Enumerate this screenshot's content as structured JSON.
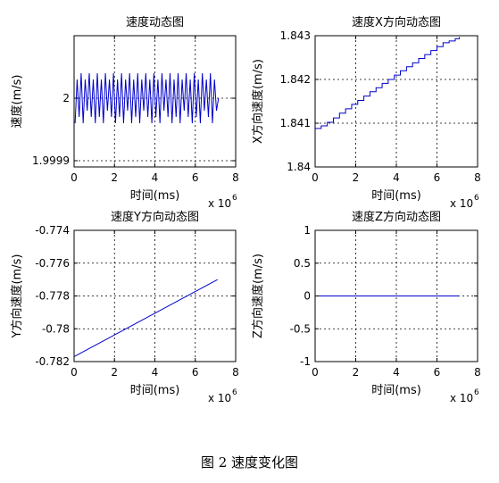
{
  "figure_caption": "图 2  速度变化图",
  "colors": {
    "line": "#0000cc",
    "axes": "#000000",
    "grid": "#000000"
  },
  "chart_data": [
    {
      "type": "line",
      "title": "速度动态图",
      "xlabel": "时间(ms)",
      "ylabel": "速度(m/s)",
      "x_multiplier": "x 10",
      "x_multiplier_exp": "6",
      "xlim": [
        0,
        8
      ],
      "ylim": [
        1.99989,
        2.0001
      ],
      "xticks": [
        0,
        2,
        4,
        6,
        8
      ],
      "xtick_labels": [
        "0",
        "2",
        "4",
        "6",
        "8"
      ],
      "yticks": [
        1.9999,
        2.0
      ],
      "ytick_labels": [
        "1.9999",
        "2"
      ],
      "grid": true,
      "series": [
        {
          "x": [
            0.05,
            0.15,
            0.25,
            0.35,
            0.45,
            0.55,
            0.65,
            0.75,
            0.85,
            0.95,
            1.05,
            1.15,
            1.25,
            1.35,
            1.45,
            1.55,
            1.65,
            1.75,
            1.85,
            1.95,
            2.05,
            2.15,
            2.25,
            2.35,
            2.45,
            2.55,
            2.65,
            2.75,
            2.85,
            2.95,
            3.05,
            3.15,
            3.25,
            3.35,
            3.45,
            3.55,
            3.65,
            3.75,
            3.85,
            3.95,
            4.05,
            4.15,
            4.25,
            4.35,
            4.45,
            4.55,
            4.65,
            4.75,
            4.85,
            4.95,
            5.05,
            5.15,
            5.25,
            5.35,
            5.45,
            5.55,
            5.65,
            5.75,
            5.85,
            5.95,
            6.05,
            6.15,
            6.25,
            6.35,
            6.45,
            6.55,
            6.65,
            6.75,
            6.85,
            6.95,
            7.05,
            7.15
          ],
          "y": [
            1.99996,
            2.00003,
            1.99997,
            2.00004,
            1.99996,
            2.00003,
            1.99998,
            2.00004,
            1.99997,
            2.00003,
            1.99996,
            2.00004,
            1.99997,
            2.00003,
            1.99996,
            2.00004,
            1.99998,
            2.00003,
            1.99997,
            2.00004,
            1.99996,
            2.00003,
            1.99997,
            2.00004,
            1.99996,
            2.00003,
            1.99998,
            2.00004,
            1.99996,
            2.00003,
            1.99997,
            2.00004,
            1.99996,
            2.00003,
            1.99998,
            2.00004,
            1.99997,
            2.00003,
            1.99996,
            2.00004,
            1.99997,
            2.00003,
            1.99996,
            2.00004,
            1.99998,
            2.00003,
            1.99997,
            2.00004,
            1.99996,
            2.00003,
            1.99997,
            2.00004,
            1.99996,
            2.00003,
            1.99998,
            2.00004,
            1.99997,
            2.00003,
            1.99996,
            2.00004,
            1.99997,
            2.00003,
            1.99996,
            2.00004,
            1.99998,
            2.00003,
            1.99997,
            2.00004,
            1.99996,
            2.00003,
            1.99998,
            2.0
          ]
        }
      ]
    },
    {
      "type": "line",
      "title": "速度X方向动态图",
      "xlabel": "时间(ms)",
      "ylabel": "X方向速度(m/s)",
      "x_multiplier": "x 10",
      "x_multiplier_exp": "6",
      "xlim": [
        0,
        8
      ],
      "ylim": [
        1.84,
        1.843
      ],
      "xticks": [
        0,
        2,
        4,
        6,
        8
      ],
      "xtick_labels": [
        "0",
        "2",
        "4",
        "6",
        "8"
      ],
      "yticks": [
        1.84,
        1.841,
        1.842,
        1.843
      ],
      "ytick_labels": [
        "1.84",
        "1.841",
        "1.842",
        "1.843"
      ],
      "grid": true,
      "series": [
        {
          "step": true,
          "x": [
            0,
            0.3,
            0.6,
            0.9,
            1.2,
            1.5,
            1.8,
            2.1,
            2.4,
            2.7,
            3.0,
            3.3,
            3.6,
            3.9,
            4.2,
            4.5,
            4.8,
            5.1,
            5.4,
            5.7,
            6.0,
            6.3,
            6.6,
            6.9,
            7.1
          ],
          "y": [
            1.84088,
            1.84094,
            1.84102,
            1.84112,
            1.84123,
            1.84133,
            1.84143,
            1.84152,
            1.84162,
            1.84172,
            1.84181,
            1.84191,
            1.842,
            1.8421,
            1.8422,
            1.84229,
            1.84238,
            1.84248,
            1.84257,
            1.84266,
            1.84275,
            1.84284,
            1.84288,
            1.84293,
            1.84297
          ]
        }
      ]
    },
    {
      "type": "line",
      "title": "速度Y方向动态图",
      "xlabel": "时间(ms)",
      "ylabel": "Y方向速度(m/s)",
      "x_multiplier": "x 10",
      "x_multiplier_exp": "6",
      "xlim": [
        0,
        8
      ],
      "ylim": [
        -0.782,
        -0.774
      ],
      "xticks": [
        0,
        2,
        4,
        6,
        8
      ],
      "xtick_labels": [
        "0",
        "2",
        "4",
        "6",
        "8"
      ],
      "yticks": [
        -0.782,
        -0.78,
        -0.778,
        -0.776,
        -0.774
      ],
      "ytick_labels": [
        "-0.782",
        "-0.78",
        "-0.778",
        "-0.776",
        "-0.774"
      ],
      "grid": true,
      "series": [
        {
          "x": [
            0,
            7.1
          ],
          "y": [
            -0.7817,
            -0.777
          ]
        }
      ]
    },
    {
      "type": "line",
      "title": "速度Z方向动态图",
      "xlabel": "时间(ms)",
      "ylabel": "Z方向速度(m/s)",
      "x_multiplier": "x 10",
      "x_multiplier_exp": "6",
      "xlim": [
        0,
        8
      ],
      "ylim": [
        -1,
        1
      ],
      "xticks": [
        0,
        2,
        4,
        6,
        8
      ],
      "xtick_labels": [
        "0",
        "2",
        "4",
        "6",
        "8"
      ],
      "yticks": [
        -1,
        -0.5,
        0,
        0.5,
        1
      ],
      "ytick_labels": [
        "-1",
        "-0.5",
        "0",
        "0.5",
        "1"
      ],
      "grid": true,
      "series": [
        {
          "x": [
            0,
            7.1
          ],
          "y": [
            0,
            0
          ]
        }
      ]
    }
  ]
}
